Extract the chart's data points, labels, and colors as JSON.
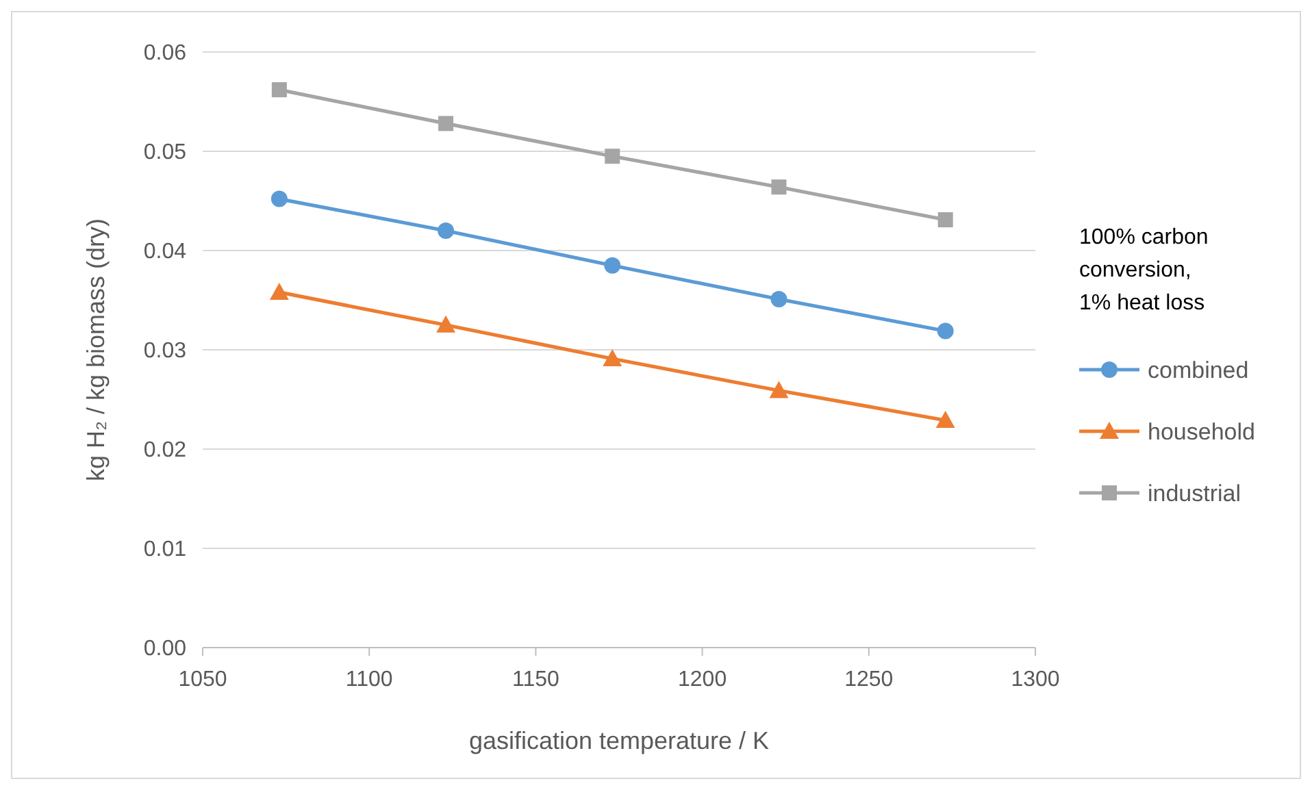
{
  "chart_data": {
    "type": "line",
    "xlabel": "gasification temperature / K",
    "ylabel": "kg H₂ / kg biomass (dry)",
    "legend_title": "100% carbon conversion, 1% heat loss",
    "x": [
      1073,
      1123,
      1173,
      1223,
      1273
    ],
    "series": [
      {
        "name": "combined",
        "color": "#5b9bd5",
        "marker": "circle",
        "values": [
          0.0452,
          0.042,
          0.0385,
          0.0351,
          0.0319
        ]
      },
      {
        "name": "household",
        "color": "#ed7d31",
        "marker": "triangle",
        "values": [
          0.0358,
          0.0325,
          0.0291,
          0.0259,
          0.0229
        ]
      },
      {
        "name": "industrial",
        "color": "#a5a5a5",
        "marker": "square",
        "values": [
          0.0562,
          0.0528,
          0.0495,
          0.0464,
          0.0431
        ]
      }
    ],
    "xlim": [
      1050,
      1300
    ],
    "xticks": [
      1050,
      1100,
      1150,
      1200,
      1250,
      1300
    ],
    "ylim": [
      0,
      0.06
    ],
    "yticks": [
      {
        "value": 0,
        "label": "0.00"
      },
      {
        "value": 0.01,
        "label": "0.01"
      },
      {
        "value": 0.02,
        "label": "0.02"
      },
      {
        "value": 0.03,
        "label": "0.03"
      },
      {
        "value": 0.04,
        "label": "0.04"
      },
      {
        "value": 0.05,
        "label": "0.05"
      },
      {
        "value": 0.06,
        "label": "0.06"
      }
    ],
    "grid": "y",
    "legend": "right",
    "line_style": "solid"
  }
}
